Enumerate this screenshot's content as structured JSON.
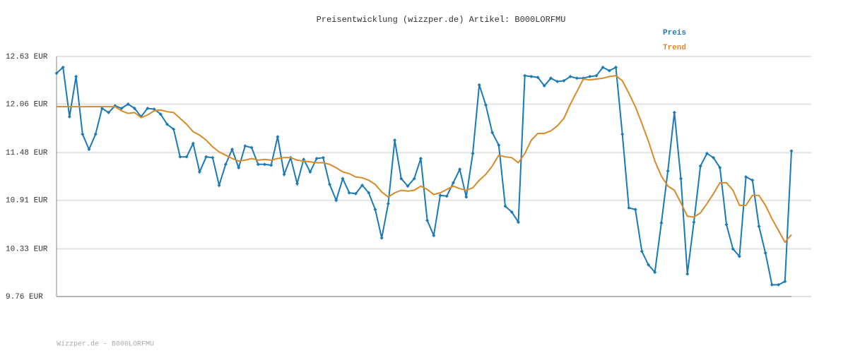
{
  "chart_data": {
    "type": "line",
    "title": "Preisentwicklung (wizzper.de) Artikel: B000LORFMU",
    "footer": "Wizzper.de - B000LORFMU",
    "ylim": [
      9.76,
      12.63
    ],
    "yticks": [
      {
        "value": 9.76,
        "label": "9.76 EUR"
      },
      {
        "value": 10.33,
        "label": "10.33 EUR"
      },
      {
        "value": 10.91,
        "label": "10.91 EUR"
      },
      {
        "value": 11.48,
        "label": "11.48 EUR"
      },
      {
        "value": 12.06,
        "label": "12.06 EUR"
      },
      {
        "value": 12.63,
        "label": "12.63 EUR"
      }
    ],
    "grid": true,
    "legend": "top-right",
    "series": [
      {
        "name": "Preis",
        "color": "#1a7ab5",
        "markers": true,
        "values": [
          12.43,
          12.5,
          11.91,
          12.39,
          11.7,
          11.52,
          11.7,
          12.01,
          11.96,
          12.04,
          12.01,
          12.06,
          12.01,
          11.91,
          12.01,
          12.0,
          11.94,
          11.82,
          11.76,
          11.43,
          11.43,
          11.59,
          11.25,
          11.43,
          11.42,
          11.09,
          11.34,
          11.52,
          11.3,
          11.56,
          11.54,
          11.34,
          11.34,
          11.33,
          11.67,
          11.22,
          11.42,
          11.11,
          11.4,
          11.25,
          11.41,
          11.42,
          11.1,
          10.91,
          11.17,
          11.0,
          10.99,
          11.09,
          11.0,
          10.8,
          10.46,
          10.87,
          11.63,
          11.17,
          11.08,
          11.17,
          11.41,
          10.67,
          10.49,
          10.97,
          10.96,
          11.12,
          11.28,
          10.95,
          11.47,
          12.29,
          12.05,
          11.72,
          11.57,
          10.84,
          10.77,
          10.65,
          12.4,
          12.39,
          12.38,
          12.28,
          12.37,
          12.33,
          12.34,
          12.39,
          12.37,
          12.37,
          12.39,
          12.4,
          12.5,
          12.46,
          12.5,
          11.7,
          10.82,
          10.8,
          10.3,
          10.14,
          10.05,
          10.64,
          11.26,
          11.96,
          11.17,
          10.03,
          10.65,
          11.32,
          11.47,
          11.42,
          11.3,
          10.62,
          10.33,
          10.24,
          11.19,
          11.15,
          10.6,
          10.28,
          9.9,
          9.9,
          9.94,
          11.5
        ]
      },
      {
        "name": "Trend",
        "color": "#d98a28",
        "markers": false,
        "values": [
          12.03,
          12.03,
          12.03,
          12.03,
          12.03,
          12.03,
          12.03,
          12.03,
          12.03,
          12.03,
          11.98,
          11.95,
          11.96,
          11.9,
          11.93,
          11.98,
          11.99,
          11.97,
          11.96,
          11.89,
          11.82,
          11.73,
          11.69,
          11.63,
          11.55,
          11.49,
          11.45,
          11.41,
          11.38,
          11.39,
          11.41,
          11.39,
          11.4,
          11.39,
          11.41,
          11.42,
          11.42,
          11.39,
          11.38,
          11.37,
          11.36,
          11.36,
          11.34,
          11.3,
          11.25,
          11.23,
          11.19,
          11.18,
          11.15,
          11.1,
          11.01,
          10.95,
          11.0,
          11.03,
          11.02,
          11.03,
          11.08,
          11.04,
          10.98,
          11.0,
          11.04,
          11.08,
          11.05,
          11.03,
          11.06,
          11.15,
          11.22,
          11.32,
          11.45,
          11.43,
          11.42,
          11.36,
          11.47,
          11.63,
          11.71,
          11.71,
          11.74,
          11.8,
          11.89,
          12.06,
          12.21,
          12.36,
          12.35,
          12.36,
          12.37,
          12.39,
          12.4,
          12.34,
          12.19,
          12.03,
          11.83,
          11.62,
          11.38,
          11.2,
          11.08,
          11.03,
          10.88,
          10.72,
          10.71,
          10.76,
          10.87,
          10.99,
          11.12,
          11.12,
          11.03,
          10.85,
          10.85,
          10.97,
          10.97,
          10.85,
          10.69,
          10.55,
          10.41,
          10.5
        ]
      }
    ]
  }
}
